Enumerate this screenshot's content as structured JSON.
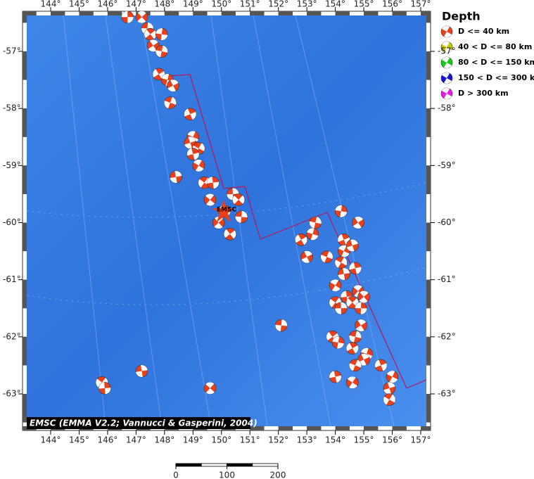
{
  "map": {
    "lon_ticks": [
      {
        "value": 144,
        "label": "144°"
      },
      {
        "value": 145,
        "label": "145°"
      },
      {
        "value": 146,
        "label": "146°"
      },
      {
        "value": 147,
        "label": "147°"
      },
      {
        "value": 148,
        "label": "148°"
      },
      {
        "value": 149,
        "label": "149°"
      },
      {
        "value": 150,
        "label": "150°"
      },
      {
        "value": 151,
        "label": "151°"
      },
      {
        "value": 152,
        "label": "152°"
      },
      {
        "value": 153,
        "label": "153°"
      },
      {
        "value": 154,
        "label": "154°"
      },
      {
        "value": 155,
        "label": "155°"
      },
      {
        "value": 156,
        "label": "156°"
      },
      {
        "value": 157,
        "label": "157°"
      }
    ],
    "lat_ticks": [
      {
        "value": -57,
        "label": "-57°"
      },
      {
        "value": -58,
        "label": "-58°"
      },
      {
        "value": -59,
        "label": "-59°"
      },
      {
        "value": -60,
        "label": "-60°"
      },
      {
        "value": -61,
        "label": "-61°"
      },
      {
        "value": -62,
        "label": "-62°"
      },
      {
        "value": -63,
        "label": "-63°"
      }
    ],
    "legend": {
      "title": "Depth",
      "entries": [
        {
          "label": "D <= 40 km",
          "color": "#e8401c"
        },
        {
          "label": "40 < D <= 80 km",
          "color": "#c8c800"
        },
        {
          "label": "80 < D <= 150 km",
          "color": "#19c819"
        },
        {
          "label": "150 < D <= 300 km",
          "color": "#1414d2"
        },
        {
          "label": "D > 300 km",
          "color": "#e619e6"
        }
      ]
    },
    "station_label": "EMSC",
    "credit": "EMSC (EMMA V2.2; Vannucci & Gasperini, 2004)",
    "scale_bar": [
      0,
      100,
      200
    ],
    "events": [
      {
        "lon": 146.7,
        "lat": -56.4
      },
      {
        "lon": 147.2,
        "lat": -56.4
      },
      {
        "lon": 147.4,
        "lat": -56.6
      },
      {
        "lon": 147.5,
        "lat": -56.7
      },
      {
        "lon": 147.9,
        "lat": -56.7
      },
      {
        "lon": 147.6,
        "lat": -56.9
      },
      {
        "lon": 147.9,
        "lat": -57.0
      },
      {
        "lon": 147.8,
        "lat": -57.4
      },
      {
        "lon": 148.1,
        "lat": -57.5
      },
      {
        "lon": 148.3,
        "lat": -57.6
      },
      {
        "lon": 148.2,
        "lat": -57.9
      },
      {
        "lon": 148.9,
        "lat": -58.1
      },
      {
        "lon": 149.0,
        "lat": -58.5
      },
      {
        "lon": 148.9,
        "lat": -58.6
      },
      {
        "lon": 149.2,
        "lat": -58.7
      },
      {
        "lon": 149.0,
        "lat": -58.8
      },
      {
        "lon": 149.2,
        "lat": -59.0
      },
      {
        "lon": 148.4,
        "lat": -59.2
      },
      {
        "lon": 149.4,
        "lat": -59.3
      },
      {
        "lon": 149.7,
        "lat": -59.3
      },
      {
        "lon": 149.6,
        "lat": -59.6
      },
      {
        "lon": 150.4,
        "lat": -59.5
      },
      {
        "lon": 150.6,
        "lat": -59.6
      },
      {
        "lon": 150.1,
        "lat": -59.8
      },
      {
        "lon": 149.9,
        "lat": -60.0
      },
      {
        "lon": 150.7,
        "lat": -59.9
      },
      {
        "lon": 150.3,
        "lat": -60.2
      },
      {
        "lon": 154.2,
        "lat": -59.8
      },
      {
        "lon": 154.8,
        "lat": -60.0
      },
      {
        "lon": 153.3,
        "lat": -60.0
      },
      {
        "lon": 152.8,
        "lat": -60.3
      },
      {
        "lon": 153.2,
        "lat": -60.2
      },
      {
        "lon": 153.0,
        "lat": -60.6
      },
      {
        "lon": 153.7,
        "lat": -60.6
      },
      {
        "lon": 154.3,
        "lat": -60.3
      },
      {
        "lon": 154.3,
        "lat": -60.5
      },
      {
        "lon": 154.6,
        "lat": -60.4
      },
      {
        "lon": 154.2,
        "lat": -60.7
      },
      {
        "lon": 154.7,
        "lat": -60.8
      },
      {
        "lon": 154.0,
        "lat": -61.1
      },
      {
        "lon": 154.3,
        "lat": -60.9
      },
      {
        "lon": 154.0,
        "lat": -61.4
      },
      {
        "lon": 154.4,
        "lat": -61.3
      },
      {
        "lon": 154.8,
        "lat": -61.2
      },
      {
        "lon": 154.2,
        "lat": -61.5
      },
      {
        "lon": 154.6,
        "lat": -61.4
      },
      {
        "lon": 154.9,
        "lat": -61.5
      },
      {
        "lon": 155.0,
        "lat": -61.3
      },
      {
        "lon": 152.1,
        "lat": -61.8
      },
      {
        "lon": 153.9,
        "lat": -62.0
      },
      {
        "lon": 154.1,
        "lat": -62.1
      },
      {
        "lon": 154.9,
        "lat": -61.8
      },
      {
        "lon": 154.7,
        "lat": -62.0
      },
      {
        "lon": 154.6,
        "lat": -62.2
      },
      {
        "lon": 155.1,
        "lat": -62.3
      },
      {
        "lon": 155.0,
        "lat": -62.4
      },
      {
        "lon": 154.7,
        "lat": -62.5
      },
      {
        "lon": 155.6,
        "lat": -62.5
      },
      {
        "lon": 156.0,
        "lat": -62.7
      },
      {
        "lon": 155.9,
        "lat": -62.9
      },
      {
        "lon": 155.9,
        "lat": -63.1
      },
      {
        "lon": 154.0,
        "lat": -62.7
      },
      {
        "lon": 154.6,
        "lat": -62.8
      },
      {
        "lon": 147.2,
        "lat": -62.6
      },
      {
        "lon": 145.8,
        "lat": -62.8
      },
      {
        "lon": 145.9,
        "lat": -62.9
      },
      {
        "lon": 149.6,
        "lat": -62.9
      }
    ]
  }
}
